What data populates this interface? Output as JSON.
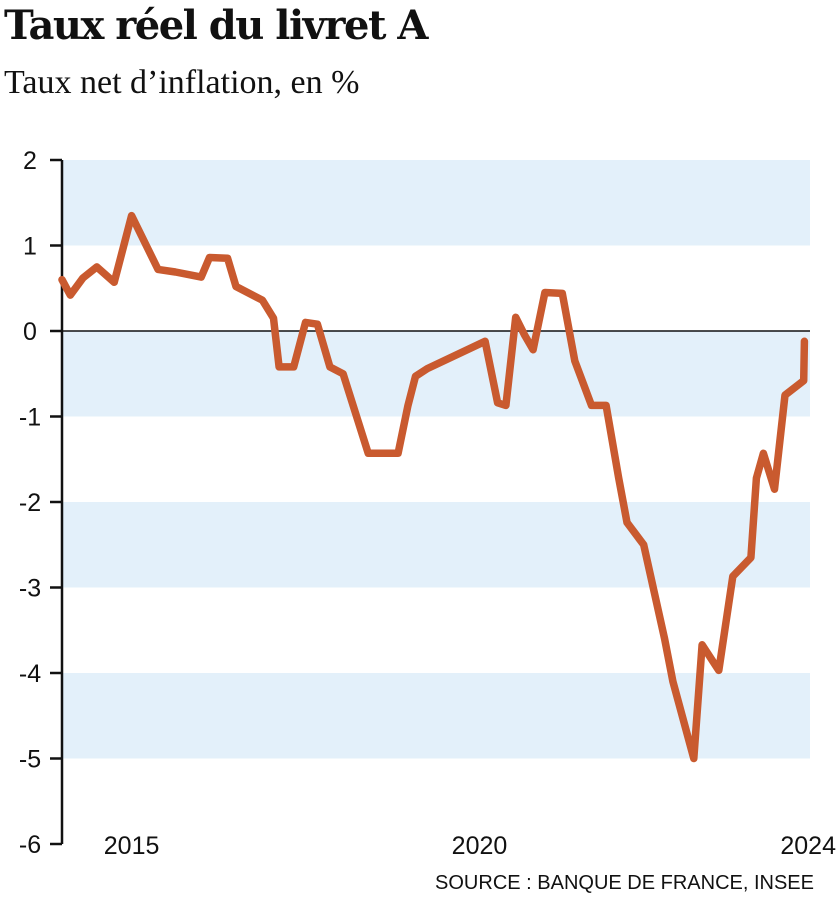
{
  "title": "Taux réel du livret A",
  "subtitle": "Taux net d’inflation, en %",
  "source": "SOURCE :  BANQUE DE FRANCE, INSEE",
  "colors": {
    "line": "#c95a2f",
    "band": "#e3f0fa",
    "axis": "#111111"
  },
  "chart_data": {
    "type": "line",
    "title": "Taux réel du livret A",
    "subtitle": "Taux net d’inflation, en %",
    "xlabel": "",
    "ylabel": "",
    "xlim": [
      2014.0,
      2024.75
    ],
    "ylim": [
      -6,
      2
    ],
    "yticks": [
      "2",
      "1",
      "0",
      "-1",
      "-2",
      "-3",
      "-4",
      "-5",
      "-6"
    ],
    "xticks": [
      "2015",
      "2020",
      "2024"
    ],
    "grid": "alternating horizontal bands",
    "legend": "none",
    "series": [
      {
        "x": [
          2014.0,
          2014.12,
          2014.3,
          2014.5,
          2014.75,
          2015.0,
          2015.38,
          2015.63,
          2016.0,
          2016.12,
          2016.38,
          2016.5,
          2016.88,
          2017.04,
          2017.12,
          2017.17,
          2017.33,
          2017.5,
          2017.67,
          2017.85,
          2018.04,
          2018.4,
          2018.83,
          2018.97,
          2019.08,
          2019.25,
          2020.08,
          2020.26,
          2020.38,
          2020.52,
          2020.65,
          2020.77,
          2020.94,
          2021.19,
          2021.37,
          2021.61,
          2021.82,
          2022.0,
          2022.12,
          2022.36,
          2022.66,
          2022.78,
          2023.08,
          2023.2,
          2023.44,
          2023.64,
          2023.9,
          2023.98,
          2024.08,
          2024.24,
          2024.39,
          2024.66,
          2024.67
        ],
        "y": [
          0.6,
          0.42,
          0.62,
          0.75,
          0.57,
          1.35,
          0.72,
          0.69,
          0.63,
          0.86,
          0.85,
          0.52,
          0.36,
          0.15,
          -0.42,
          -0.42,
          -0.42,
          0.1,
          0.08,
          -0.42,
          -0.5,
          -1.43,
          -1.43,
          -0.88,
          -0.53,
          -0.44,
          -0.12,
          -0.84,
          -0.87,
          0.16,
          -0.05,
          -0.22,
          0.45,
          0.44,
          -0.35,
          -0.87,
          -0.87,
          -1.72,
          -2.24,
          -2.5,
          -3.6,
          -4.1,
          -5.0,
          -3.67,
          -3.97,
          -2.87,
          -2.65,
          -1.72,
          -1.43,
          -1.85,
          -0.75,
          -0.58,
          -0.12
        ]
      }
    ]
  }
}
